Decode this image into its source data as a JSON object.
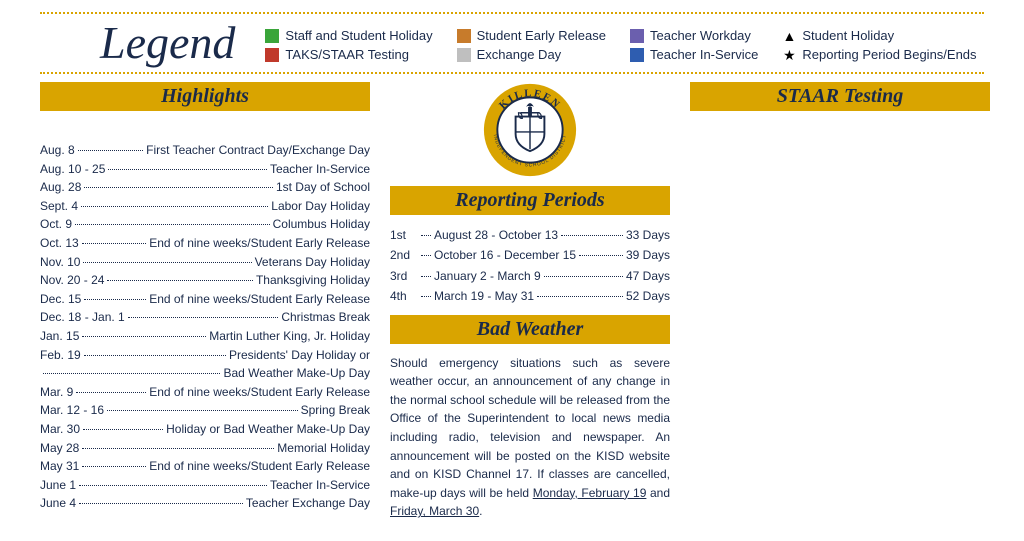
{
  "colors": {
    "gold": "#d9a400",
    "navy": "#1a2a4a"
  },
  "legend": {
    "title": "Legend",
    "items": [
      {
        "type": "swatch",
        "color": "#3aa53a",
        "label": "Staff and Student Holiday"
      },
      {
        "type": "swatch",
        "color": "#c77b2b",
        "label": "Student Early Release"
      },
      {
        "type": "swatch",
        "color": "#6b5fae",
        "label": "Teacher Workday"
      },
      {
        "type": "symbol",
        "glyph": "▲",
        "label": "Student Holiday"
      },
      {
        "type": "swatch",
        "color": "#c0392b",
        "label": "TAKS/STAAR Testing"
      },
      {
        "type": "swatch",
        "color": "#bfbfbf",
        "label": "Exchange Day"
      },
      {
        "type": "swatch",
        "color": "#2e5db0",
        "label": "Teacher In-Service"
      },
      {
        "type": "symbol",
        "glyph": "★",
        "label": "Reporting Period Begins/Ends"
      }
    ]
  },
  "highlights": {
    "title": "Highlights",
    "rows": [
      {
        "l": "Aug. 8",
        "r": "First Teacher Contract Day/Exchange Day"
      },
      {
        "l": "Aug. 10 - 25",
        "r": "Teacher In-Service"
      },
      {
        "l": "Aug. 28",
        "r": "1st Day of School"
      },
      {
        "l": "Sept. 4",
        "r": "Labor Day Holiday"
      },
      {
        "l": "Oct. 9",
        "r": "Columbus Holiday"
      },
      {
        "l": "Oct. 13",
        "r": "End of nine weeks/Student Early Release"
      },
      {
        "l": "Nov. 10",
        "r": "Veterans Day Holiday"
      },
      {
        "l": "Nov. 20 - 24",
        "r": "Thanksgiving Holiday"
      },
      {
        "l": "Dec. 15",
        "r": "End of nine weeks/Student Early Release"
      },
      {
        "l": "Dec. 18 - Jan. 1",
        "r": "Christmas Break"
      },
      {
        "l": "Jan. 15",
        "r": "Martin Luther King, Jr. Holiday"
      },
      {
        "l": "Feb. 19",
        "r": "Presidents' Day Holiday or"
      },
      {
        "l": "",
        "r": "Bad Weather Make-Up Day"
      },
      {
        "l": "Mar. 9",
        "r": "End of nine weeks/Student Early Release"
      },
      {
        "l": "Mar. 12 - 16",
        "r": "Spring Break"
      },
      {
        "l": "Mar. 30",
        "r": "Holiday or Bad Weather Make-Up Day"
      },
      {
        "l": "May 28",
        "r": "Memorial Holiday"
      },
      {
        "l": "May 31",
        "r": "End of nine weeks/Student Early Release"
      },
      {
        "l": "June 1",
        "r": "Teacher In-Service"
      },
      {
        "l": "June 4",
        "r": "Teacher Exchange Day"
      }
    ]
  },
  "seal": {
    "outer_text_top": "KILLEEN",
    "outer_text_bottom": "INDEPENDENT SCHOOL DISTRICT"
  },
  "reporting": {
    "title": "Reporting Periods",
    "rows": [
      {
        "n": "1st",
        "dates": "August 28 - October 13",
        "days": "33 Days"
      },
      {
        "n": "2nd",
        "dates": "October 16 - December 15",
        "days": "39 Days"
      },
      {
        "n": "3rd",
        "dates": "January 2 - March 9",
        "days": "47 Days"
      },
      {
        "n": "4th",
        "dates": "March 19 - May 31",
        "days": "52 Days"
      }
    ]
  },
  "badweather": {
    "title": "Bad Weather",
    "text_pre": "Should emergency situations such as severe weather occur, an announcement of any change in the normal school schedule will be released from the Office of the Superintendent to local news media including radio, television and newspaper.  An announcement will be posted on the KISD website and on KISD Channel 17. If classes are cancelled, make-up days will be held ",
    "date1": "Monday, February 19",
    "mid": " and ",
    "date2": "Friday, March 30",
    "post": "."
  },
  "staar": {
    "title": "STAAR Testing"
  }
}
